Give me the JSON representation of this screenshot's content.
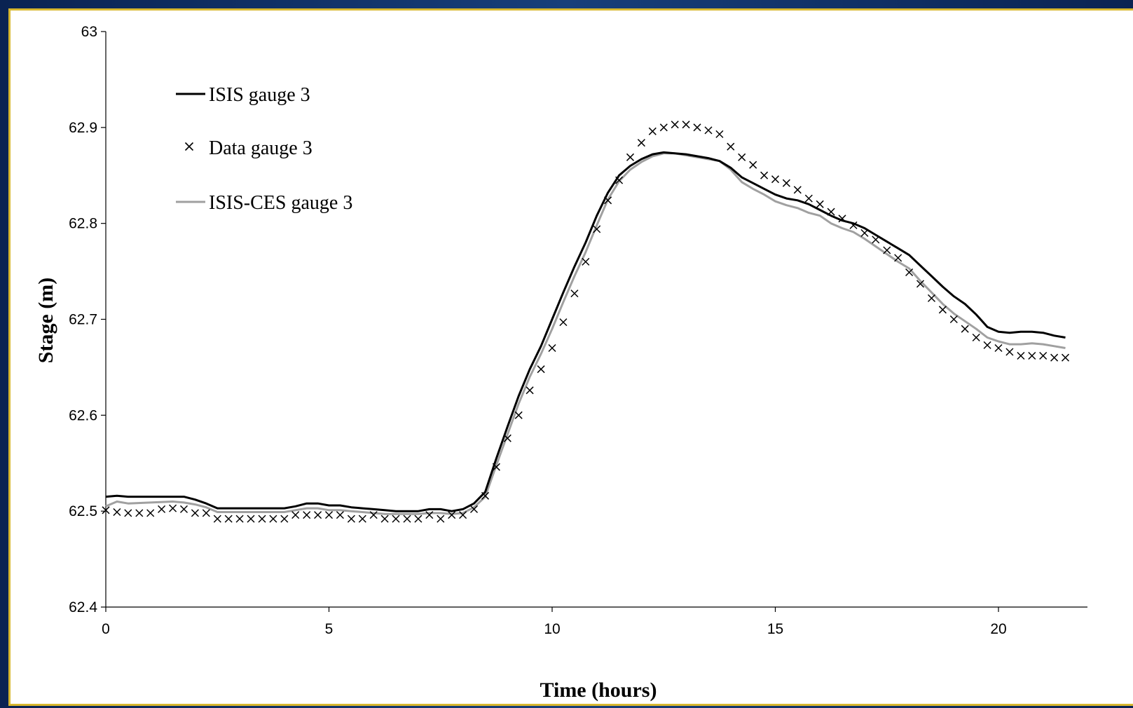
{
  "chart_data": {
    "type": "line",
    "title": "",
    "xlabel": "Time (hours)",
    "ylabel": "Stage (m)",
    "xlim": [
      0,
      22
    ],
    "ylim": [
      62.4,
      63.0
    ],
    "x_ticks": [
      0,
      5,
      10,
      15,
      20
    ],
    "x_tick_labels": [
      "0",
      "5",
      "10",
      "15",
      "20"
    ],
    "y_ticks": [
      62.4,
      62.5,
      62.6,
      62.7,
      62.8,
      62.9,
      63.0
    ],
    "y_tick_labels": [
      "62.4",
      "62.5",
      "62.6",
      "62.7",
      "62.8",
      "62.9",
      "63"
    ],
    "grid": false,
    "legend_position": "top-left",
    "series": [
      {
        "name": "ISIS gauge 3",
        "style": "line",
        "color": "#000000",
        "x": [
          0,
          0.25,
          0.5,
          1.0,
          1.5,
          1.75,
          2.0,
          2.25,
          2.5,
          3.0,
          3.5,
          4.0,
          4.25,
          4.5,
          4.75,
          5.0,
          5.25,
          5.5,
          5.75,
          6.0,
          6.25,
          6.5,
          6.75,
          7.0,
          7.25,
          7.5,
          7.75,
          8.0,
          8.25,
          8.5,
          8.75,
          9.0,
          9.25,
          9.5,
          9.75,
          10.0,
          10.25,
          10.5,
          10.75,
          11.0,
          11.25,
          11.5,
          11.75,
          12.0,
          12.25,
          12.5,
          12.75,
          13.0,
          13.25,
          13.5,
          13.75,
          14.0,
          14.25,
          14.5,
          14.75,
          15.0,
          15.25,
          15.5,
          15.75,
          16.0,
          16.25,
          16.5,
          16.75,
          17.0,
          17.25,
          17.5,
          17.75,
          18.0,
          18.25,
          18.5,
          18.75,
          19.0,
          19.25,
          19.5,
          19.75,
          20.0,
          20.25,
          20.5,
          20.75,
          21.0,
          21.25,
          21.5
        ],
        "y": [
          62.515,
          62.516,
          62.515,
          62.515,
          62.515,
          62.515,
          62.512,
          62.508,
          62.503,
          62.503,
          62.503,
          62.503,
          62.505,
          62.508,
          62.508,
          62.506,
          62.506,
          62.504,
          62.503,
          62.502,
          62.501,
          62.5,
          62.5,
          62.5,
          62.502,
          62.502,
          62.5,
          62.502,
          62.508,
          62.52,
          62.555,
          62.588,
          62.62,
          62.648,
          62.672,
          62.7,
          62.728,
          62.755,
          62.78,
          62.808,
          62.832,
          62.85,
          62.86,
          62.867,
          62.872,
          62.874,
          62.873,
          62.872,
          62.87,
          62.868,
          62.865,
          62.858,
          62.848,
          62.842,
          62.836,
          62.83,
          62.826,
          62.824,
          62.82,
          62.814,
          62.808,
          62.803,
          62.8,
          62.795,
          62.788,
          62.781,
          62.774,
          62.767,
          62.756,
          62.745,
          62.734,
          62.724,
          62.716,
          62.705,
          62.692,
          62.687,
          62.686,
          62.687,
          62.687,
          62.686,
          62.683,
          62.681
        ]
      },
      {
        "name": "Data gauge 3",
        "style": "marker-x",
        "color": "#000000",
        "x": [
          0,
          0.25,
          0.5,
          0.75,
          1.0,
          1.25,
          1.5,
          1.75,
          2.0,
          2.25,
          2.5,
          2.75,
          3.0,
          3.25,
          3.5,
          3.75,
          4.0,
          4.25,
          4.5,
          4.75,
          5.0,
          5.25,
          5.5,
          5.75,
          6.0,
          6.25,
          6.5,
          6.75,
          7.0,
          7.25,
          7.5,
          7.75,
          8.0,
          8.25,
          8.5,
          8.75,
          9.0,
          9.25,
          9.5,
          9.75,
          10.0,
          10.25,
          10.5,
          10.75,
          11.0,
          11.25,
          11.5,
          11.75,
          12.0,
          12.25,
          12.5,
          12.75,
          13.0,
          13.25,
          13.5,
          13.75,
          14.0,
          14.25,
          14.5,
          14.75,
          15.0,
          15.25,
          15.5,
          15.75,
          16.0,
          16.25,
          16.5,
          16.75,
          17.0,
          17.25,
          17.5,
          17.75,
          18.0,
          18.25,
          18.5,
          18.75,
          19.0,
          19.25,
          19.5,
          19.75,
          20.0,
          20.25,
          20.5,
          20.75,
          21.0,
          21.25,
          21.5
        ],
        "y": [
          62.501,
          62.499,
          62.498,
          62.498,
          62.498,
          62.502,
          62.503,
          62.502,
          62.498,
          62.498,
          62.492,
          62.492,
          62.492,
          62.492,
          62.492,
          62.492,
          62.492,
          62.496,
          62.496,
          62.496,
          62.496,
          62.496,
          62.492,
          62.492,
          62.496,
          62.492,
          62.492,
          62.492,
          62.492,
          62.496,
          62.492,
          62.496,
          62.496,
          62.502,
          62.516,
          62.546,
          62.576,
          62.6,
          62.626,
          62.648,
          62.67,
          62.697,
          62.727,
          62.76,
          62.794,
          62.824,
          62.845,
          62.869,
          62.884,
          62.896,
          62.9,
          62.903,
          62.903,
          62.9,
          62.897,
          62.893,
          62.88,
          62.869,
          62.861,
          62.85,
          62.846,
          62.842,
          62.835,
          62.826,
          62.82,
          62.812,
          62.805,
          62.798,
          62.79,
          62.783,
          62.772,
          62.764,
          62.749,
          62.737,
          62.722,
          62.71,
          62.7,
          62.69,
          62.681,
          62.673,
          62.67,
          62.666,
          62.662,
          62.662,
          62.662,
          62.66,
          62.66
        ]
      },
      {
        "name": "ISIS-CES gauge 3",
        "style": "line",
        "color": "#a0a0a0",
        "x": [
          0,
          0.25,
          0.5,
          1.0,
          1.5,
          1.75,
          2.0,
          2.25,
          2.5,
          3.0,
          3.5,
          4.0,
          4.25,
          4.5,
          4.75,
          5.0,
          5.25,
          5.5,
          5.75,
          6.0,
          6.25,
          6.5,
          6.75,
          7.0,
          7.25,
          7.5,
          7.75,
          8.0,
          8.25,
          8.5,
          8.75,
          9.0,
          9.25,
          9.5,
          9.75,
          10.0,
          10.25,
          10.5,
          10.75,
          11.0,
          11.25,
          11.5,
          11.75,
          12.0,
          12.25,
          12.5,
          12.75,
          13.0,
          13.25,
          13.5,
          13.75,
          14.0,
          14.25,
          14.5,
          14.75,
          15.0,
          15.25,
          15.5,
          15.75,
          16.0,
          16.25,
          16.5,
          16.75,
          17.0,
          17.25,
          17.5,
          17.75,
          18.0,
          18.25,
          18.5,
          18.75,
          19.0,
          19.25,
          19.5,
          19.75,
          20.0,
          20.25,
          20.5,
          20.75,
          21.0,
          21.25,
          21.5
        ],
        "y": [
          62.505,
          62.51,
          62.508,
          62.509,
          62.51,
          62.509,
          62.507,
          62.504,
          62.499,
          62.499,
          62.499,
          62.499,
          62.501,
          62.503,
          62.503,
          62.501,
          62.501,
          62.5,
          62.499,
          62.498,
          62.497,
          62.497,
          62.497,
          62.497,
          62.498,
          62.498,
          62.497,
          62.498,
          62.504,
          62.515,
          62.548,
          62.58,
          62.612,
          62.64,
          62.664,
          62.69,
          62.718,
          62.745,
          62.77,
          62.798,
          62.825,
          62.844,
          62.856,
          62.864,
          62.87,
          62.873,
          62.873,
          62.871,
          62.869,
          62.867,
          62.865,
          62.856,
          62.843,
          62.836,
          62.83,
          62.823,
          62.819,
          62.816,
          62.811,
          62.808,
          62.8,
          62.795,
          62.791,
          62.784,
          62.776,
          62.768,
          62.76,
          62.753,
          62.74,
          62.728,
          62.716,
          62.706,
          62.698,
          62.69,
          62.681,
          62.677,
          62.674,
          62.674,
          62.675,
          62.674,
          62.672,
          62.67
        ]
      }
    ]
  },
  "colors": {
    "frame": "#0d2a5c",
    "frame_border": "#d8b830",
    "plot_background": "#ffffff"
  }
}
